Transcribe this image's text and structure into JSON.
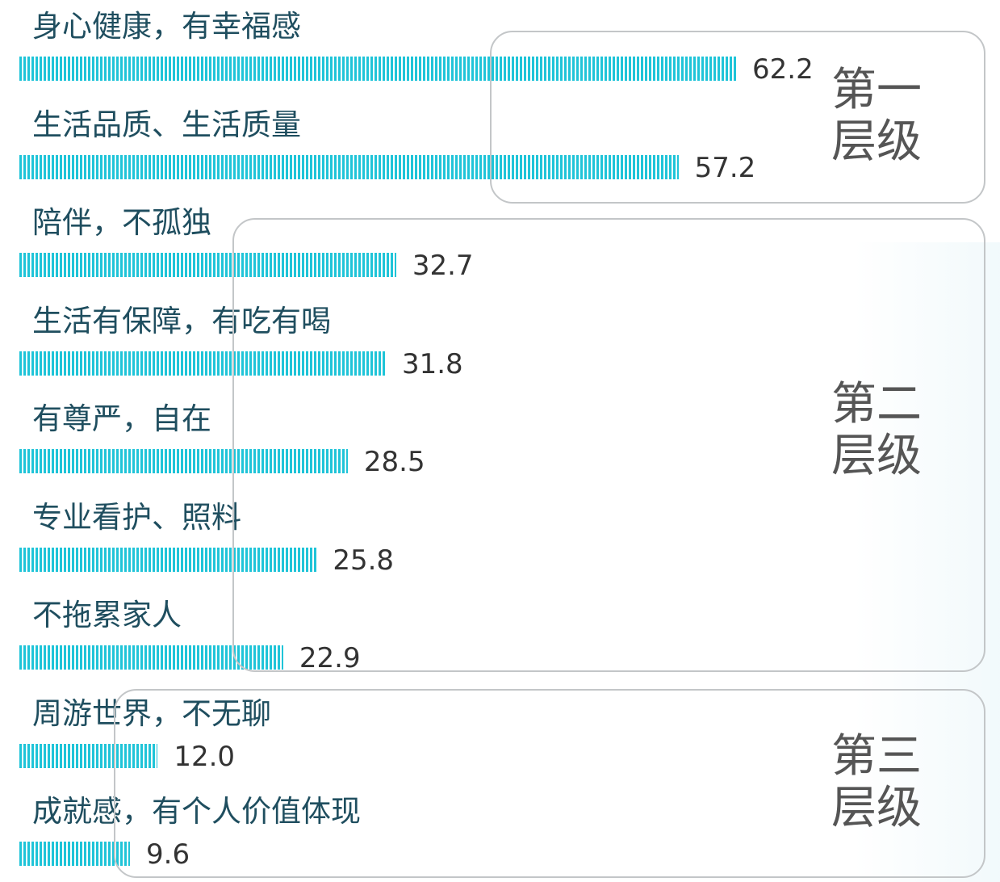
{
  "chart_data": {
    "type": "bar",
    "orientation": "horizontal",
    "categories": [
      "身心健康，有幸福感",
      "生活品质、生活质量",
      "陪伴，不孤独",
      "生活有保障，有吃有喝",
      "有尊严，自在",
      "专业看护、照料",
      "不拖累家人",
      "周游世界，不无聊",
      "成就感，有个人价值体现"
    ],
    "values": [
      62.2,
      57.2,
      32.7,
      31.8,
      28.5,
      25.8,
      22.9,
      12.0,
      9.6
    ],
    "value_labels": [
      "62.2",
      "57.2",
      "32.7",
      "31.8",
      "28.5",
      "25.8",
      "22.9",
      "12.0",
      "9.6"
    ],
    "xlim": [
      0,
      62.2
    ],
    "grid": false,
    "bar_color": "#1fc4d8",
    "groups": [
      {
        "line1": "第一",
        "line2": "层级",
        "members": [
          0,
          1
        ]
      },
      {
        "line1": "第二",
        "line2": "层级",
        "members": [
          2,
          3,
          4,
          5,
          6
        ]
      },
      {
        "line1": "第三",
        "line2": "层级",
        "members": [
          7,
          8
        ]
      }
    ]
  }
}
